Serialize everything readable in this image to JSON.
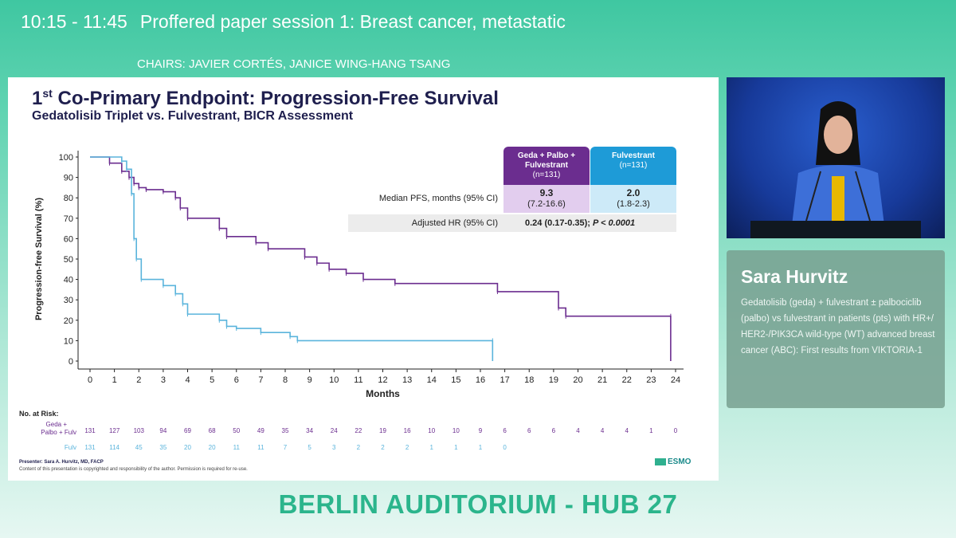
{
  "header": {
    "time": "10:15 - 11:45",
    "session": "Proffered paper session 1: Breast cancer, metastatic",
    "chairs": "CHAIRS: JAVIER CORTÉS, JANICE WING-HANG TSANG"
  },
  "slide": {
    "title_prefix": "1",
    "title_sup": "st",
    "title_rest": " Co-Primary Endpoint: Progression-Free Survival",
    "subtitle": "Gedatolisib Triplet vs. Fulvestrant, BICR Assessment",
    "table": {
      "geda_head": "Geda + Palbo + Fulvestrant",
      "geda_n": "(n=131)",
      "fulv_head": "Fulvestrant",
      "fulv_n": "(n=131)",
      "median_label": "Median PFS, months (95% CI)",
      "geda_median": "9.3",
      "geda_ci": "(7.2-16.6)",
      "fulv_median": "2.0",
      "fulv_ci": "(1.8-2.3)",
      "hr_label": "Adjusted HR (95% CI)",
      "hr_value": "0.24 (0.17-0.35); ",
      "hr_p": "P < 0.0001"
    },
    "footer_presenter": "Presenter: Sara A. Hurvitz, MD, FACP",
    "footer_copy": "Content of this presentation is copyrighted and responsibility of the author. Permission is required for re-use.",
    "logo_text": "ESMO"
  },
  "chart_data": {
    "type": "line",
    "title": "",
    "xlabel": "Months",
    "ylabel": "Progression-free Survival (%)",
    "xlim": [
      0,
      24
    ],
    "ylim": [
      0,
      100
    ],
    "xticks": [
      0,
      1,
      2,
      3,
      4,
      5,
      6,
      7,
      8,
      9,
      10,
      11,
      12,
      13,
      14,
      15,
      16,
      17,
      18,
      19,
      20,
      21,
      22,
      23,
      24
    ],
    "yticks": [
      0,
      10,
      20,
      30,
      40,
      50,
      60,
      70,
      80,
      90,
      100
    ],
    "series": [
      {
        "name": "Geda + Palbo + Fulv",
        "color": "#6b2d8f",
        "x": [
          0,
          0.8,
          1.3,
          1.6,
          1.8,
          2.0,
          2.3,
          3.0,
          3.5,
          3.7,
          4.0,
          5.3,
          5.6,
          6.8,
          7.3,
          8.8,
          9.3,
          9.8,
          10.5,
          11.2,
          12.5,
          16.7,
          19.2,
          19.5,
          23.8,
          23.8
        ],
        "y": [
          100,
          97,
          93,
          90,
          87,
          85,
          84,
          83,
          80,
          75,
          70,
          65,
          61,
          58,
          55,
          51,
          48,
          45,
          43,
          40,
          38,
          34,
          26,
          22,
          22,
          0
        ]
      },
      {
        "name": "Fulv",
        "color": "#5ab4dc",
        "x": [
          0,
          1.3,
          1.5,
          1.7,
          1.8,
          1.9,
          2.1,
          3.0,
          3.5,
          3.8,
          4.0,
          5.3,
          5.6,
          6.0,
          7.0,
          8.2,
          8.5,
          16.5,
          16.5
        ],
        "y": [
          100,
          98,
          94,
          82,
          60,
          50,
          40,
          37,
          33,
          28,
          23,
          20,
          17,
          16,
          14,
          12,
          10,
          10,
          0
        ]
      }
    ],
    "at_risk": {
      "title": "No. at Risk:",
      "rows": [
        {
          "label": "Geda + Palbo + Fulv",
          "color": "#6b2d8f",
          "values": [
            131,
            127,
            103,
            94,
            69,
            68,
            50,
            49,
            35,
            34,
            24,
            22,
            19,
            16,
            10,
            10,
            9,
            6,
            6,
            6,
            4,
            4,
            4,
            1,
            0
          ]
        },
        {
          "label": "Fulv",
          "color": "#5ab4dc",
          "values": [
            131,
            114,
            45,
            35,
            20,
            20,
            11,
            11,
            7,
            5,
            3,
            2,
            2,
            2,
            1,
            1,
            1,
            0
          ]
        }
      ]
    }
  },
  "speaker": {
    "name": "Sara Hurvitz",
    "description": "Gedatolisib (geda) + fulvestrant ± palbociclib (palbo) vs fulvestrant in patients (pts) with HR+/ HER2-/PIK3CA wild-type (WT) advanced breast cancer (ABC): First results from VIKTORIA-1"
  },
  "room": "BERLIN AUDITORIUM - HUB 27"
}
